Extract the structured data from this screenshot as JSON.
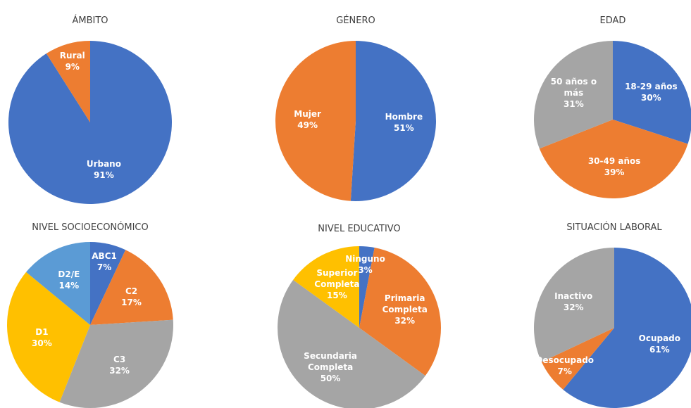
{
  "chart_data": [
    {
      "type": "pie",
      "title": "ÁMBITO",
      "categories": [
        "Urbano",
        "Rural"
      ],
      "values": [
        91,
        9
      ],
      "value_labels": [
        "91%",
        "9%"
      ],
      "colors": [
        "#4472c4",
        "#ed7d31"
      ]
    },
    {
      "type": "pie",
      "title": "GÉNERO",
      "categories": [
        "Hombre",
        "Mujer"
      ],
      "values": [
        51,
        49
      ],
      "value_labels": [
        "51%",
        "49%"
      ],
      "colors": [
        "#4472c4",
        "#ed7d31"
      ]
    },
    {
      "type": "pie",
      "title": "EDAD",
      "categories": [
        "18-29 años",
        "30-49 años",
        "50 años o más"
      ],
      "values": [
        30,
        39,
        31
      ],
      "value_labels": [
        "30%",
        "39%",
        "31%"
      ],
      "colors": [
        "#4472c4",
        "#ed7d31",
        "#a5a5a5"
      ]
    },
    {
      "type": "pie",
      "title": "NIVEL SOCIOECONÓMICO",
      "categories": [
        "ABC1",
        "C2",
        "C3",
        "D1",
        "D2/E"
      ],
      "values": [
        7,
        17,
        32,
        30,
        14
      ],
      "value_labels": [
        "7%",
        "17%",
        "32%",
        "30%",
        "14%"
      ],
      "colors": [
        "#4472c4",
        "#ed7d31",
        "#a5a5a5",
        "#ffc000",
        "#5b9bd5"
      ]
    },
    {
      "type": "pie",
      "title": "NIVEL EDUCATIVO",
      "categories": [
        "Ninguno",
        "Primaria Completa",
        "Secundaria Completa",
        "Superior Completa"
      ],
      "values": [
        3,
        32,
        50,
        15
      ],
      "value_labels": [
        "3%",
        "32%",
        "50%",
        "15%"
      ],
      "colors": [
        "#4472c4",
        "#ed7d31",
        "#a5a5a5",
        "#ffc000"
      ]
    },
    {
      "type": "pie",
      "title": "SITUACIÓN LABORAL",
      "categories": [
        "Ocupado",
        "Desocupado",
        "Inactivo"
      ],
      "values": [
        61,
        7,
        32
      ],
      "value_labels": [
        "61%",
        "7%",
        "32%"
      ],
      "colors": [
        "#4472c4",
        "#ed7d31",
        "#a5a5a5"
      ]
    }
  ]
}
